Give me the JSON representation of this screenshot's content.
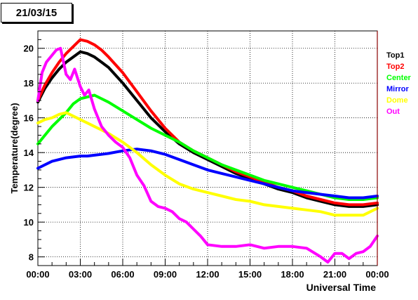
{
  "chart_data": {
    "type": "line",
    "title": "21/03/15",
    "xlabel": "Universal Time",
    "ylabel": "Temperature(degree)",
    "xlim": [
      0,
      24
    ],
    "ylim": [
      7.5,
      21.0
    ],
    "x_ticks": [
      "00:00",
      "03:00",
      "06:00",
      "09:00",
      "12:00",
      "15:00",
      "18:00",
      "21:00",
      "00:00"
    ],
    "y_ticks": [
      "8",
      "10",
      "12",
      "14",
      "16",
      "18",
      "20"
    ],
    "grid": true,
    "legend_position": "right",
    "series": [
      {
        "name": "Top1",
        "color": "#000000",
        "x": [
          0,
          0.5,
          1,
          1.5,
          2,
          2.5,
          3,
          3.5,
          4,
          4.5,
          5,
          6,
          7,
          8,
          9,
          10,
          11,
          12,
          13,
          14,
          15,
          16,
          17,
          18,
          19,
          20,
          21,
          22,
          23,
          24
        ],
        "y": [
          16.9,
          17.7,
          18.3,
          18.8,
          19.2,
          19.5,
          19.8,
          19.7,
          19.5,
          19.2,
          18.9,
          18.0,
          17.0,
          16.0,
          15.2,
          14.5,
          14.0,
          13.6,
          13.2,
          12.8,
          12.5,
          12.2,
          11.9,
          11.7,
          11.4,
          11.2,
          11.0,
          10.9,
          10.9,
          11.0
        ]
      },
      {
        "name": "Top2",
        "color": "#ff0000",
        "x": [
          0,
          0.5,
          1,
          1.5,
          2,
          2.5,
          3,
          3.5,
          4,
          4.5,
          5,
          6,
          7,
          8,
          9,
          10,
          11,
          12,
          13,
          14,
          15,
          16,
          17,
          18,
          19,
          20,
          21,
          22,
          23,
          24
        ],
        "y": [
          17.0,
          17.9,
          18.6,
          19.2,
          19.7,
          20.1,
          20.5,
          20.4,
          20.2,
          19.9,
          19.5,
          18.6,
          17.5,
          16.4,
          15.4,
          14.6,
          14.1,
          13.7,
          13.3,
          12.9,
          12.6,
          12.3,
          12.0,
          11.8,
          11.5,
          11.3,
          11.1,
          11.0,
          11.0,
          11.1
        ]
      },
      {
        "name": "Center",
        "color": "#00ff00",
        "x": [
          0,
          0.5,
          1,
          1.5,
          2,
          2.5,
          3,
          3.5,
          4,
          4.5,
          5,
          6,
          7,
          8,
          9,
          10,
          11,
          12,
          13,
          14,
          15,
          16,
          17,
          18,
          19,
          20,
          21,
          22,
          23,
          24
        ],
        "y": [
          14.5,
          15.0,
          15.5,
          15.9,
          16.3,
          16.8,
          17.1,
          17.2,
          17.3,
          17.1,
          16.9,
          16.4,
          15.9,
          15.4,
          15.0,
          14.6,
          14.1,
          13.7,
          13.3,
          13.0,
          12.7,
          12.4,
          12.2,
          12.0,
          11.8,
          11.6,
          11.4,
          11.3,
          11.3,
          11.4
        ]
      },
      {
        "name": "Mirror",
        "color": "#0000ff",
        "x": [
          0,
          0.5,
          1,
          1.5,
          2,
          2.5,
          3,
          3.5,
          4,
          4.5,
          5,
          6,
          7,
          8,
          9,
          10,
          11,
          12,
          13,
          14,
          15,
          16,
          17,
          18,
          19,
          20,
          21,
          22,
          23,
          24
        ],
        "y": [
          13.1,
          13.3,
          13.5,
          13.6,
          13.7,
          13.75,
          13.8,
          13.8,
          13.85,
          13.9,
          13.95,
          14.1,
          14.2,
          14.1,
          13.9,
          13.6,
          13.3,
          13.0,
          12.8,
          12.6,
          12.4,
          12.2,
          12.0,
          11.8,
          11.7,
          11.6,
          11.5,
          11.4,
          11.4,
          11.5
        ]
      },
      {
        "name": "Dome",
        "color": "#ffff00",
        "x": [
          0,
          0.5,
          1,
          1.5,
          2,
          2.5,
          3,
          3.5,
          4,
          4.5,
          5,
          6,
          7,
          8,
          9,
          10,
          11,
          12,
          13,
          14,
          15,
          16,
          17,
          18,
          19,
          20,
          21,
          22,
          23,
          24
        ],
        "y": [
          15.7,
          15.9,
          16.0,
          16.2,
          16.3,
          16.1,
          15.9,
          15.7,
          15.5,
          15.3,
          15.1,
          14.6,
          14.0,
          13.3,
          12.7,
          12.2,
          11.9,
          11.7,
          11.5,
          11.3,
          11.2,
          11.0,
          10.9,
          10.8,
          10.7,
          10.6,
          10.4,
          10.4,
          10.4,
          10.8
        ]
      },
      {
        "name": "Out",
        "color": "#ff00ff",
        "x": [
          0,
          0.3,
          0.6,
          1.0,
          1.3,
          1.6,
          2.0,
          2.3,
          2.6,
          3.0,
          3.3,
          3.6,
          4.0,
          4.5,
          5,
          5.5,
          6,
          6.5,
          7,
          7.5,
          8,
          8.5,
          9,
          9.5,
          10,
          10.5,
          11,
          11.5,
          12,
          13,
          14,
          15,
          16,
          17,
          18,
          19,
          20,
          20.5,
          21,
          21.5,
          22,
          22.5,
          23,
          23.5,
          24
        ],
        "y": [
          17.0,
          18.6,
          19.2,
          19.6,
          19.9,
          20.0,
          18.5,
          18.2,
          18.8,
          17.8,
          17.3,
          17.6,
          16.5,
          15.5,
          15.0,
          14.6,
          14.3,
          13.7,
          12.7,
          12.1,
          11.2,
          10.9,
          10.8,
          10.6,
          10.2,
          10.0,
          9.6,
          9.2,
          8.7,
          8.6,
          8.6,
          8.7,
          8.5,
          8.6,
          8.6,
          8.5,
          8.0,
          7.7,
          8.2,
          8.2,
          7.9,
          8.2,
          8.3,
          8.6,
          9.2
        ]
      }
    ]
  }
}
